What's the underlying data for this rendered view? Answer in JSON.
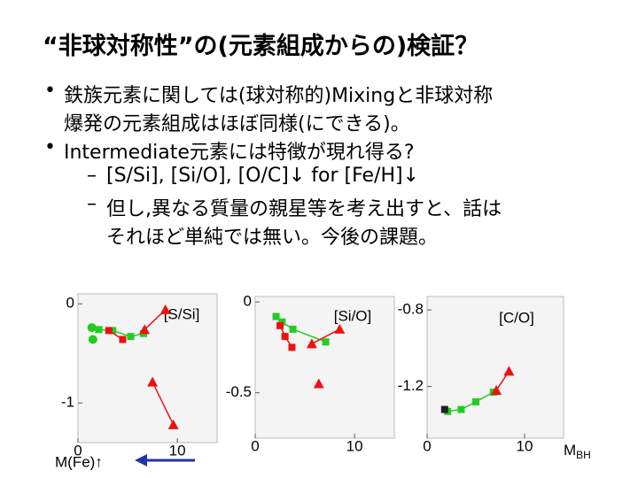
{
  "title": "“非球対称性”の(元素組成からの)検証？",
  "bullets": [
    {
      "lines": [
        "鉄族元素に関しては(球対称的)Mixingと非球対称",
        "爆発の元素組成はほぼ同様(にできる)。"
      ]
    },
    {
      "lines": [
        "Intermediate元素には特徴が現れ得る?"
      ],
      "sub": [
        {
          "lines": [
            "[S/Si], [Si/O], [O/C]↓ for [Fe/H]↓"
          ]
        },
        {
          "lines": [
            "但し,異なる質量の親星等を考え出すと、話は",
            "それほど単純では無い。今後の課題。"
          ]
        }
      ]
    }
  ],
  "x_note": {
    "main": "M",
    "sub": "BH"
  },
  "arrow_note": "M(Fe)↑",
  "chart_data": [
    {
      "type": "scatter",
      "label": "[S/Si]",
      "xlim": [
        0,
        14
      ],
      "ylim": [
        -1.4,
        0.1
      ],
      "xticks": [
        0,
        10
      ],
      "yticks": [
        0,
        -1
      ],
      "series": [
        {
          "color": "#22cc22",
          "marker": "square",
          "line": true,
          "x": [
            2.1,
            3.5,
            5.3,
            6.6
          ],
          "values": [
            -0.26,
            -0.27,
            -0.33,
            -0.3
          ]
        },
        {
          "color": "#22cc22",
          "marker": "circle",
          "line": false,
          "x": [
            1.5,
            1.4
          ],
          "values": [
            -0.36,
            -0.24
          ]
        },
        {
          "color": "#ee1111",
          "marker": "square",
          "line": true,
          "x": [
            3.1,
            4.5
          ],
          "values": [
            -0.27,
            -0.36
          ]
        },
        {
          "color": "#ee1111",
          "marker": "triangle",
          "line": true,
          "x": [
            6.7,
            8.8
          ],
          "values": [
            -0.26,
            -0.06
          ]
        },
        {
          "color": "#ee1111",
          "marker": "triangle",
          "line": true,
          "x": [
            7.5,
            9.6
          ],
          "values": [
            -0.79,
            -1.22
          ]
        }
      ]
    },
    {
      "type": "scatter",
      "label": "[Si/O]",
      "xlim": [
        0,
        14
      ],
      "ylim": [
        -0.75,
        0.03
      ],
      "xticks": [
        0,
        10
      ],
      "yticks": [
        0,
        -0.5
      ],
      "series": [
        {
          "color": "#22cc22",
          "marker": "square",
          "line": true,
          "x": [
            2.1,
            2.7,
            3.8,
            7.1
          ],
          "values": [
            -0.08,
            -0.11,
            -0.15,
            -0.22
          ]
        },
        {
          "color": "#ee1111",
          "marker": "square",
          "line": true,
          "x": [
            2.5,
            3.0,
            3.7
          ],
          "values": [
            -0.13,
            -0.19,
            -0.25
          ]
        },
        {
          "color": "#ee1111",
          "marker": "triangle",
          "line": true,
          "x": [
            5.7,
            8.5
          ],
          "values": [
            -0.23,
            -0.15
          ]
        },
        {
          "color": "#ee1111",
          "marker": "triangle",
          "line": false,
          "x": [
            6.4
          ],
          "values": [
            -0.45
          ]
        }
      ]
    },
    {
      "type": "scatter",
      "label": "[C/O]",
      "xlim": [
        0,
        14
      ],
      "ylim": [
        -1.47,
        -0.73
      ],
      "xticks": [
        0,
        10
      ],
      "yticks": [
        -0.8,
        -1.2
      ],
      "series": [
        {
          "color": "#22cc22",
          "marker": "square",
          "line": true,
          "x": [
            2.1,
            3.5,
            5.0,
            6.8
          ],
          "values": [
            -1.33,
            -1.32,
            -1.28,
            -1.23
          ]
        },
        {
          "color": "#ee1111",
          "marker": "triangle",
          "line": true,
          "x": [
            7.1,
            8.4
          ],
          "values": [
            -1.22,
            -1.12
          ]
        },
        {
          "color": "#222222",
          "marker": "square",
          "line": false,
          "x": [
            1.8
          ],
          "values": [
            -1.32
          ]
        }
      ]
    }
  ]
}
